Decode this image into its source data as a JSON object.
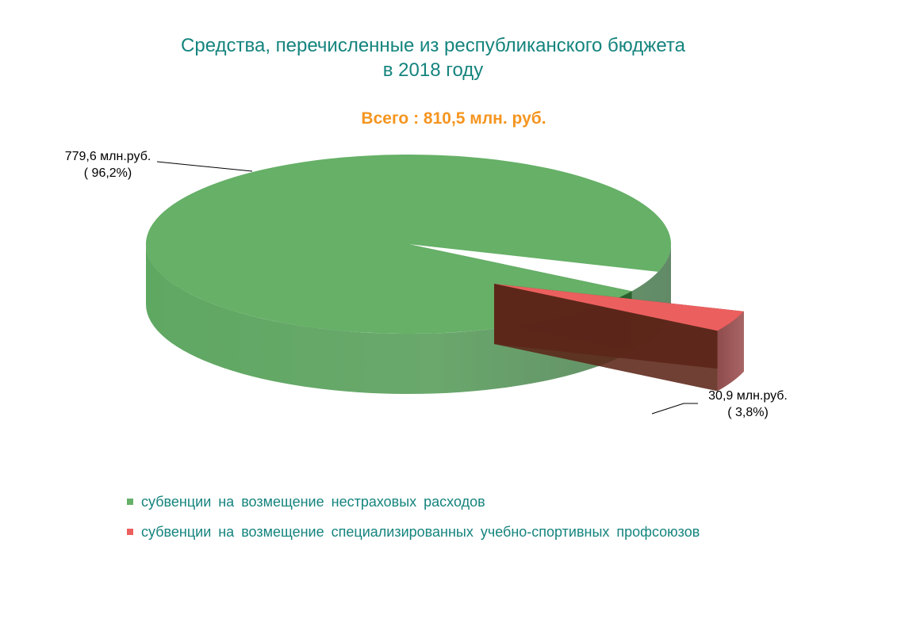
{
  "chart_data": {
    "type": "pie",
    "three_d": true,
    "title": "Средства, перечисленные из республиканского бюджета\nв 2018 году",
    "subtitle": "Всего : 810,5 млн. руб.",
    "total": 810.5,
    "unit": "млн. руб.",
    "slices": [
      {
        "name": "субвенции  на возмещение  нестраховых  расходов",
        "value": 779.6,
        "percent": 96.2,
        "label": "779,6 млн.руб.\n( 96,2%)",
        "color": "#66b06a"
      },
      {
        "name": "субвенции  на возмещение  специализированных  учебно-спортивных  профсоюзов",
        "value": 30.9,
        "percent": 3.8,
        "label": "30,9  млн.руб.\n( 3,8%)",
        "color": "#ec5f5f"
      }
    ],
    "legend_position": "bottom-left"
  }
}
